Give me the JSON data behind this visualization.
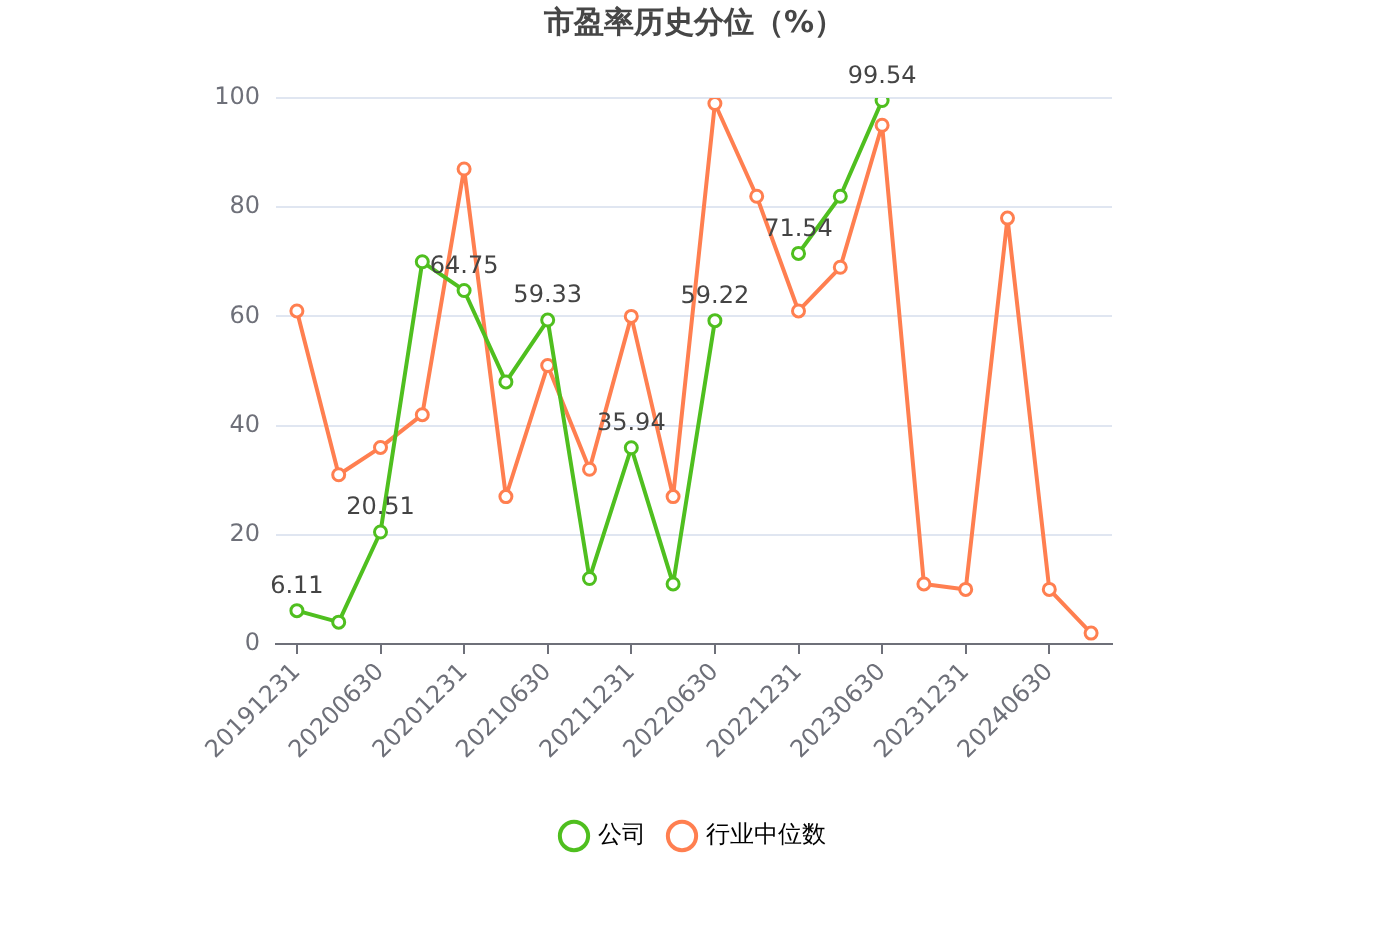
{
  "chart_data": {
    "type": "line",
    "title": "市盈率历史分位（%）",
    "categories": [
      "20191231",
      null,
      "20200630",
      null,
      "20201231",
      null,
      "20210630",
      null,
      "20211231",
      null,
      "20220630",
      null,
      "20221231",
      null,
      "20230630",
      null,
      "20231231",
      null,
      "20240630",
      null
    ],
    "series": [
      {
        "name": "公司",
        "color": "#4fbf1f",
        "values": [
          6.11,
          4,
          20.51,
          70,
          64.75,
          48,
          59.33,
          12,
          35.94,
          11,
          59.22,
          null,
          71.54,
          82,
          99.54,
          null,
          null,
          null,
          null,
          null
        ],
        "value_labels": [
          "6.11",
          null,
          "20.51",
          null,
          "64.75",
          null,
          "59.33",
          null,
          "35.94",
          null,
          "59.22",
          null,
          "71.54",
          null,
          "99.54",
          null,
          null,
          null,
          null,
          null
        ]
      },
      {
        "name": "行业中位数",
        "color": "#ff7f50",
        "values": [
          61,
          31,
          36,
          42,
          87,
          27,
          51,
          32,
          60,
          27,
          99,
          82,
          61,
          69,
          95,
          11,
          10,
          78,
          10,
          2
        ]
      }
    ],
    "ylim": [
      0,
      100
    ],
    "yticks": [
      0,
      20,
      40,
      60,
      80,
      100
    ],
    "grid": "y",
    "legend": "bottom",
    "marker": "circle"
  }
}
